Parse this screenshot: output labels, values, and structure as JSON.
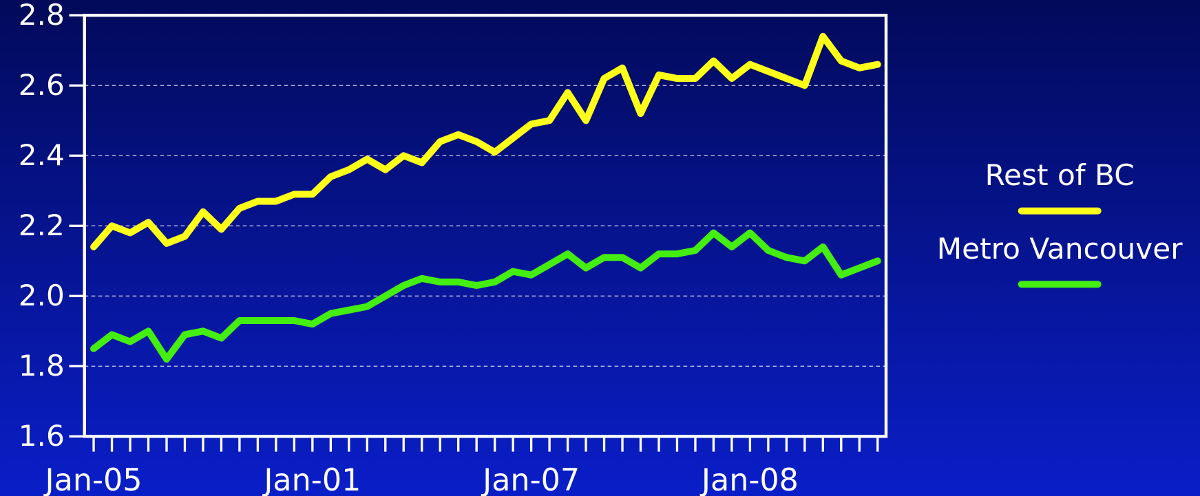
{
  "chart_data": {
    "type": "line",
    "categories": [
      "Jan-05",
      null,
      null,
      null,
      null,
      null,
      null,
      null,
      null,
      null,
      null,
      null,
      "Jan-01",
      null,
      null,
      null,
      null,
      null,
      null,
      null,
      null,
      null,
      null,
      null,
      "Jan-07",
      null,
      null,
      null,
      null,
      null,
      null,
      null,
      null,
      null,
      null,
      null,
      "Jan-08",
      null,
      null,
      null,
      null,
      null,
      null,
      null
    ],
    "series": [
      {
        "name": "Rest of BC",
        "color": "#ffff19",
        "values": [
          2.14,
          2.2,
          2.18,
          2.21,
          2.15,
          2.17,
          2.24,
          2.19,
          2.25,
          2.27,
          2.27,
          2.29,
          2.29,
          2.34,
          2.36,
          2.39,
          2.36,
          2.4,
          2.38,
          2.44,
          2.46,
          2.44,
          2.41,
          2.45,
          2.49,
          2.5,
          2.58,
          2.5,
          2.62,
          2.65,
          2.52,
          2.63,
          2.62,
          2.62,
          2.67,
          2.62,
          2.66,
          2.64,
          2.62,
          2.6,
          2.74,
          2.67,
          2.65,
          2.66
        ]
      },
      {
        "name": "Metro Vancouver",
        "color": "#44ee11",
        "values": [
          1.85,
          1.89,
          1.87,
          1.9,
          1.82,
          1.89,
          1.9,
          1.88,
          1.93,
          1.93,
          1.93,
          1.93,
          1.92,
          1.95,
          1.96,
          1.97,
          2.0,
          2.03,
          2.05,
          2.04,
          2.04,
          2.03,
          2.04,
          2.07,
          2.06,
          2.09,
          2.12,
          2.08,
          2.11,
          2.11,
          2.08,
          2.12,
          2.12,
          2.13,
          2.18,
          2.14,
          2.18,
          2.13,
          2.11,
          2.1,
          2.14,
          2.06,
          2.08,
          2.1
        ]
      }
    ],
    "ylim": [
      1.6,
      2.8
    ],
    "yticks": [
      1.6,
      1.8,
      {
        "value": 2,
        "label": "2.0"
      },
      2.2,
      2.4,
      2.6,
      2.8
    ],
    "grid": true,
    "legend": "right"
  }
}
